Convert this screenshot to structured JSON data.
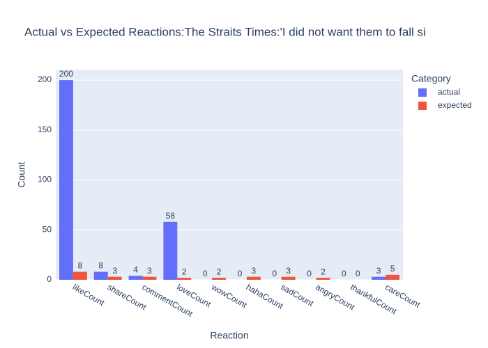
{
  "chart_data": {
    "type": "bar",
    "title": "Actual vs Expected Reactions:The Straits Times:'I did not want them to fall si",
    "x_label": "Reaction",
    "y_label": "Count",
    "legend_title": "Category",
    "categories": [
      "likeCount",
      "shareCount",
      "commentCount",
      "loveCount",
      "wowCount",
      "hahaCount",
      "sadCount",
      "angryCount",
      "thankfulCount",
      "careCount"
    ],
    "series": [
      {
        "name": "actual",
        "color": "#636efa",
        "values": [
          200,
          8,
          4,
          58,
          0,
          0,
          0,
          0,
          0,
          3
        ]
      },
      {
        "name": "expected",
        "color": "#ef553b",
        "values": [
          8,
          3,
          3,
          2,
          2,
          3,
          3,
          2,
          0,
          5
        ]
      }
    ],
    "ylim": [
      0,
      210.5
    ],
    "yticks": [
      0,
      50,
      100,
      150,
      200
    ],
    "grid": true,
    "legend": "right"
  }
}
